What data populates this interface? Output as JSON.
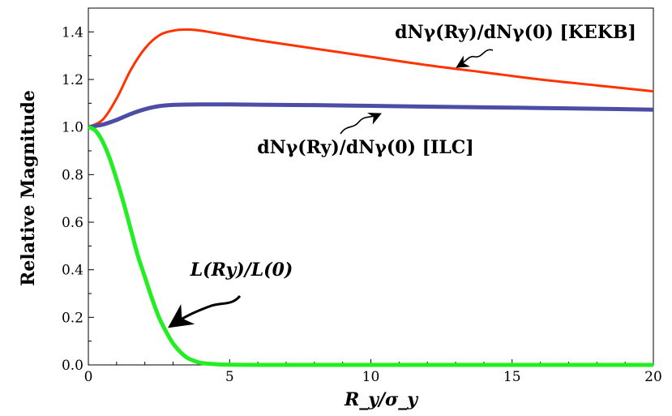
{
  "chart_data": {
    "type": "line",
    "title": "",
    "xlabel": "R_y/σ_y",
    "ylabel": "Relative Magnitude",
    "xlim": [
      0,
      20
    ],
    "ylim": [
      0,
      1.5
    ],
    "xticks": [
      "0",
      "5",
      "10",
      "15",
      "20"
    ],
    "yticks": [
      "0.0",
      "0.2",
      "0.4",
      "0.6",
      "0.8",
      "1.0",
      "1.2",
      "1.4"
    ],
    "grid": false,
    "series": [
      {
        "name": "dNγ(Ry)/dNγ(0) [KEKB]",
        "color": "#ff3300",
        "x": [
          0,
          0.5,
          1,
          1.5,
          2,
          2.5,
          3,
          3.5,
          4,
          5,
          6,
          8,
          10,
          12,
          14,
          16,
          18,
          20
        ],
        "y": [
          1.0,
          1.03,
          1.12,
          1.24,
          1.33,
          1.385,
          1.405,
          1.41,
          1.405,
          1.385,
          1.365,
          1.33,
          1.295,
          1.26,
          1.23,
          1.2,
          1.175,
          1.15
        ]
      },
      {
        "name": "dNγ(Ry)/dNγ(0) [ILC]",
        "color": "#4d4da6",
        "x": [
          0,
          0.5,
          1,
          1.5,
          2,
          2.5,
          3,
          4,
          5,
          6,
          8,
          10,
          12,
          14,
          16,
          18,
          20
        ],
        "y": [
          1.0,
          1.01,
          1.03,
          1.055,
          1.075,
          1.088,
          1.093,
          1.095,
          1.095,
          1.094,
          1.092,
          1.089,
          1.086,
          1.083,
          1.08,
          1.077,
          1.073
        ]
      },
      {
        "name": "L(Ry)/L(0)",
        "color": "#22ee22",
        "x": [
          0,
          0.25,
          0.5,
          0.75,
          1,
          1.25,
          1.5,
          1.75,
          2,
          2.25,
          2.5,
          2.75,
          3,
          3.25,
          3.5,
          3.75,
          4,
          4.5,
          5,
          6,
          8,
          10,
          15,
          20
        ],
        "y": [
          1.0,
          0.985,
          0.94,
          0.87,
          0.78,
          0.68,
          0.57,
          0.46,
          0.37,
          0.28,
          0.2,
          0.14,
          0.09,
          0.055,
          0.03,
          0.017,
          0.008,
          0.003,
          0.001,
          0.0,
          0.0,
          0.0,
          0.0,
          0.0
        ]
      }
    ],
    "annotations": [
      {
        "text": "dNγ(Ry)/dNγ(0) [KEKB]",
        "points_to": [
          13,
          1.28
        ]
      },
      {
        "text": "dNγ(Ry)/dNγ(0) [ILC]",
        "points_to": [
          10,
          1.09
        ]
      },
      {
        "text": "L(Ry)/L(0)",
        "points_to": [
          2.8,
          0.15
        ]
      }
    ]
  }
}
